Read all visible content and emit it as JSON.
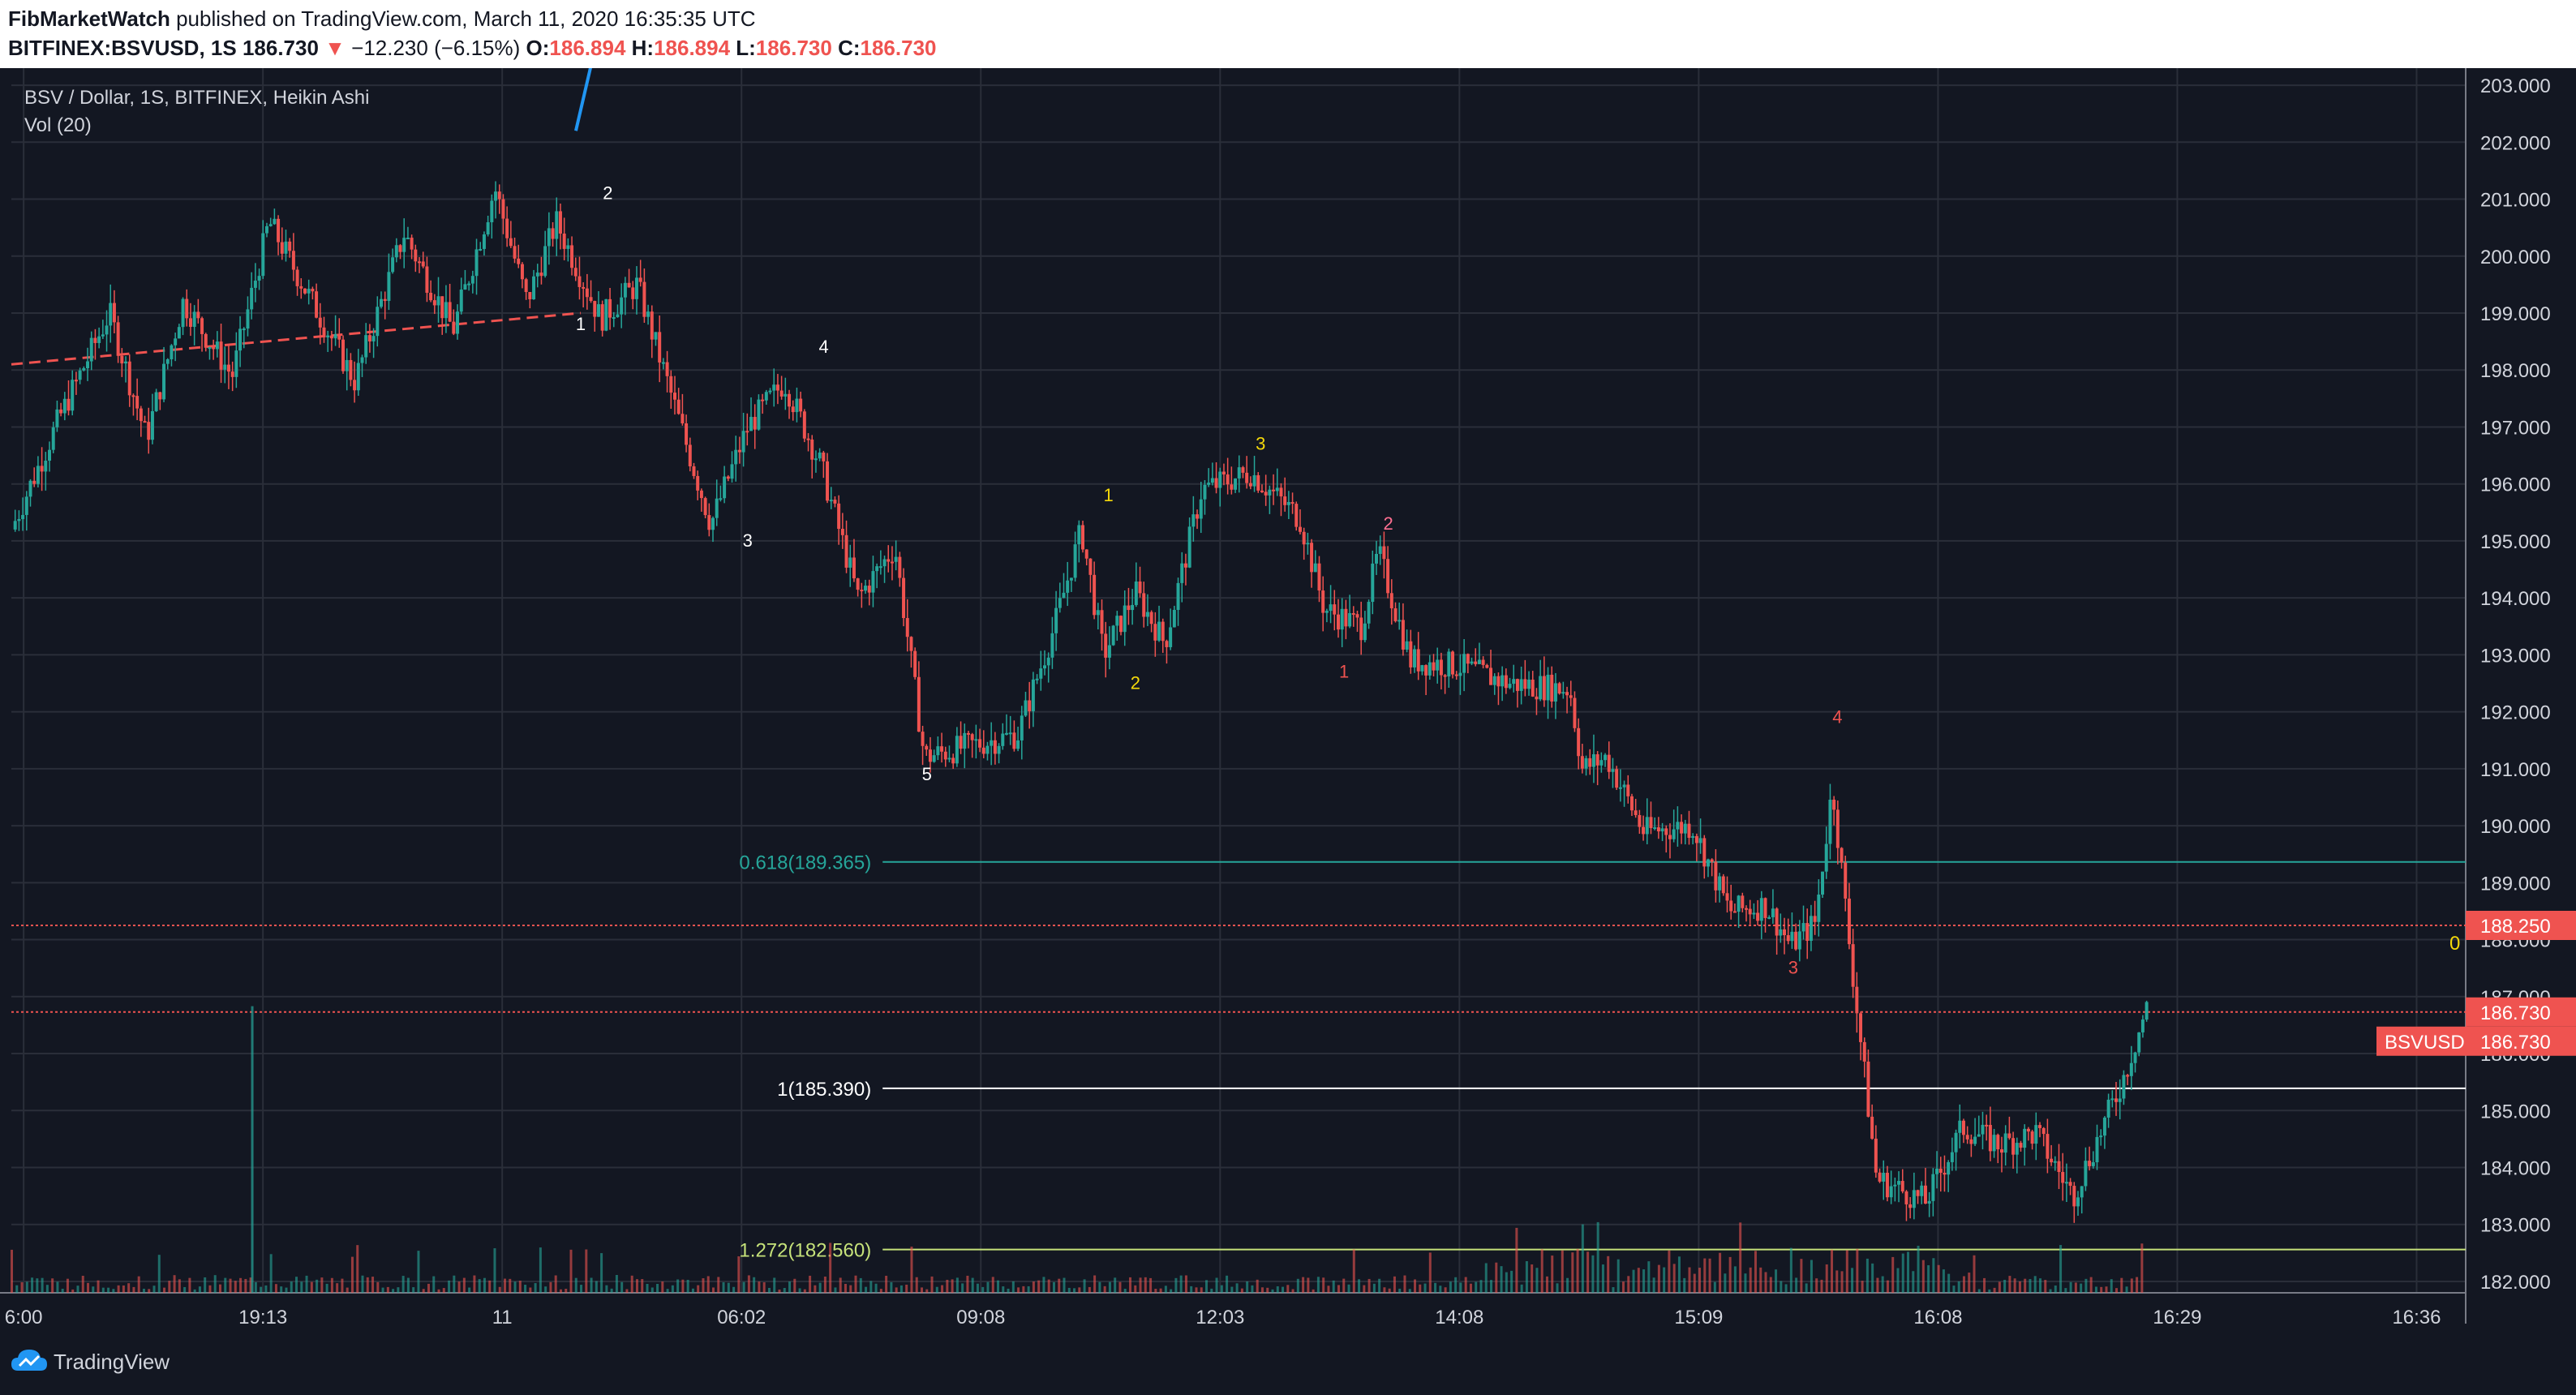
{
  "header": {
    "author": "FibMarketWatch",
    "published": "published on TradingView.com, March 11, 2020 16:35:35 UTC",
    "symbol": "BITFINEX:BSVUSD, 1S",
    "last": "186.730",
    "change": "−12.230 (−6.15%)",
    "o_label": "O:",
    "o_value": "186.894",
    "h_label": "H:",
    "h_value": "186.894",
    "l_label": "L:",
    "l_value": "186.730",
    "c_label": "C:",
    "c_value": "186.730"
  },
  "chart_data": {
    "type": "candlestick",
    "title": "BSV / Dollar, 1S, BITFINEX, Heikin Ashi",
    "subtitle": "Vol (20)",
    "symbol_tag": "BSVUSD",
    "ylim": [
      181.8,
      203.3
    ],
    "y_ticks": [
      "203.000",
      "202.000",
      "201.000",
      "200.000",
      "199.000",
      "198.000",
      "197.000",
      "196.000",
      "195.000",
      "194.000",
      "193.000",
      "192.000",
      "191.000",
      "190.000",
      "189.000",
      "188.000",
      "187.000",
      "186.000",
      "185.000",
      "184.000",
      "183.000",
      "182.000"
    ],
    "x_ticks": [
      "6:00",
      "19:13",
      "11",
      "06:02",
      "09:08",
      "12:03",
      "14:08",
      "15:09",
      "16:08",
      "16:29",
      "16:36"
    ],
    "price_path": [
      [
        0,
        195.2
      ],
      [
        0.02,
        197.2
      ],
      [
        0.04,
        199.0
      ],
      [
        0.055,
        196.8
      ],
      [
        0.07,
        199.2
      ],
      [
        0.09,
        197.9
      ],
      [
        0.105,
        200.6
      ],
      [
        0.125,
        199.0
      ],
      [
        0.14,
        197.8
      ],
      [
        0.16,
        200.4
      ],
      [
        0.18,
        198.7
      ],
      [
        0.197,
        201.2
      ],
      [
        0.21,
        199.2
      ],
      [
        0.222,
        200.6
      ],
      [
        0.24,
        198.9
      ],
      [
        0.255,
        199.5
      ],
      [
        0.27,
        197.4
      ],
      [
        0.285,
        195.3
      ],
      [
        0.3,
        197.0
      ],
      [
        0.315,
        197.8
      ],
      [
        0.33,
        196.3
      ],
      [
        0.345,
        194.0
      ],
      [
        0.36,
        194.9
      ],
      [
        0.372,
        191.2
      ],
      [
        0.39,
        191.4
      ],
      [
        0.41,
        191.6
      ],
      [
        0.425,
        193.5
      ],
      [
        0.436,
        195.2
      ],
      [
        0.445,
        193.0
      ],
      [
        0.458,
        194.1
      ],
      [
        0.47,
        193.2
      ],
      [
        0.485,
        195.9
      ],
      [
        0.505,
        196.2
      ],
      [
        0.525,
        195.4
      ],
      [
        0.535,
        193.8
      ],
      [
        0.55,
        193.5
      ],
      [
        0.557,
        194.8
      ],
      [
        0.57,
        192.9
      ],
      [
        0.59,
        192.8
      ],
      [
        0.61,
        192.5
      ],
      [
        0.635,
        192.4
      ],
      [
        0.64,
        191.0
      ],
      [
        0.65,
        191.2
      ],
      [
        0.665,
        189.9
      ],
      [
        0.685,
        190.0
      ],
      [
        0.7,
        188.5
      ],
      [
        0.715,
        188.6
      ],
      [
        0.725,
        187.9
      ],
      [
        0.735,
        188.3
      ],
      [
        0.742,
        190.7
      ],
      [
        0.75,
        187.5
      ],
      [
        0.76,
        183.8
      ],
      [
        0.78,
        183.4
      ],
      [
        0.795,
        184.7
      ],
      [
        0.81,
        184.4
      ],
      [
        0.825,
        184.6
      ],
      [
        0.84,
        183.5
      ],
      [
        0.86,
        185.5
      ],
      [
        0.87,
        186.8
      ]
    ],
    "volume_spikes": [
      [
        0.098,
        0.93
      ]
    ],
    "wave_labels": [
      {
        "text": "1",
        "x": 0.232,
        "y": 198.7,
        "color": "#ffffff"
      },
      {
        "text": "2",
        "x": 0.243,
        "y": 201.0,
        "color": "#ffffff"
      },
      {
        "text": "3",
        "x": 0.3,
        "y": 194.9,
        "color": "#ffffff"
      },
      {
        "text": "4",
        "x": 0.331,
        "y": 198.3,
        "color": "#ffffff"
      },
      {
        "text": "5",
        "x": 0.373,
        "y": 190.8,
        "color": "#ffffff"
      },
      {
        "text": "1",
        "x": 0.447,
        "y": 195.7,
        "color": "#f5d90a"
      },
      {
        "text": "2",
        "x": 0.458,
        "y": 192.4,
        "color": "#f5d90a"
      },
      {
        "text": "3",
        "x": 0.509,
        "y": 196.6,
        "color": "#f5d90a"
      },
      {
        "text": "1",
        "x": 0.543,
        "y": 192.6,
        "color": "#ef5350"
      },
      {
        "text": "2",
        "x": 0.561,
        "y": 195.2,
        "color": "#ff6f91"
      },
      {
        "text": "3",
        "x": 0.726,
        "y": 187.4,
        "color": "#ef5350"
      },
      {
        "text": "4",
        "x": 0.744,
        "y": 191.8,
        "color": "#ef5350"
      }
    ],
    "fib_levels": [
      {
        "label": "0.618(189.365)",
        "value": 189.365,
        "color": "#26a69a"
      },
      {
        "label": "1(185.390)",
        "value": 185.39,
        "color": "#ffffff"
      },
      {
        "label": "1.272(182.560)",
        "value": 182.56,
        "color": "#c6e27a"
      }
    ],
    "fib_zero_label": "0",
    "trendline": [
      [
        0,
        198.1
      ],
      [
        0.232,
        199.0
      ]
    ],
    "horizontal_lines": [
      {
        "value": 188.25,
        "label": "188.250",
        "color": "#ef5350"
      },
      {
        "value": 186.73,
        "label": "186.730",
        "color": "#ef5350"
      }
    ],
    "colors": {
      "up": "#26a69a",
      "down": "#ef5350",
      "background": "#131722",
      "grid": "#2a2e39",
      "blue_line": "#2196f3"
    }
  },
  "footer": {
    "brand": "TradingView",
    "logo_icon": "tradingview-cloud-icon"
  }
}
